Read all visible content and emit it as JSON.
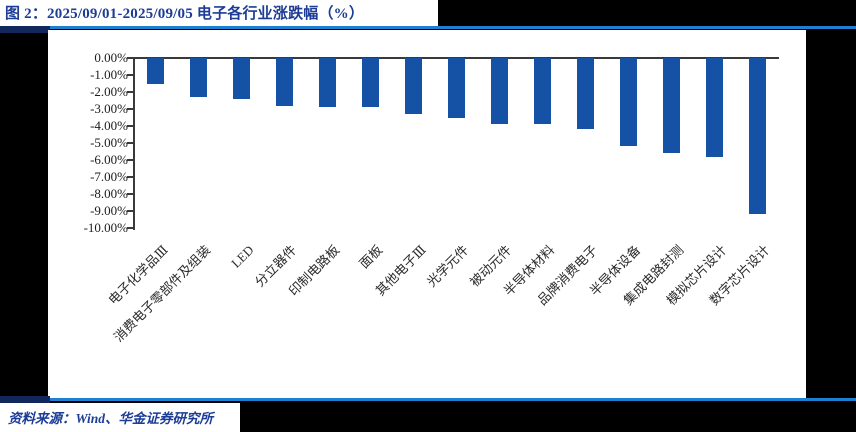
{
  "header": {
    "title": "图 2：2025/09/01-2025/09/05 电子各行业涨跌幅（%）"
  },
  "footer": {
    "source_note": "资料来源：Wind、华金证券研究所"
  },
  "colors": {
    "canvas": "#000000",
    "accent_rule_blue": "#1F7FD0",
    "navy_segment": "#12275B",
    "title_text_blue": "#1C3C96",
    "bar_blue": "#1551A5",
    "axis_gray": "#3a3a3a"
  },
  "chart_data": {
    "type": "bar",
    "title": "2025/09/01-2025/09/05 电子各行业涨跌幅（%）",
    "orientation": "vertical",
    "unit": "%",
    "categories": [
      "电子化学品Ⅲ",
      "消费电子零部件及组装",
      "LED",
      "分立器件",
      "印制电路板",
      "面板",
      "其他电子Ⅲ",
      "光学元件",
      "被动元件",
      "半导体材料",
      "品牌消费电子",
      "半导体设备",
      "集成电路封测",
      "模拟芯片设计",
      "数字芯片设计"
    ],
    "values": [
      -1.5,
      -2.3,
      -2.4,
      -2.8,
      -2.9,
      -2.9,
      -3.3,
      -3.5,
      -3.9,
      -3.9,
      -4.2,
      -5.2,
      -5.6,
      -5.8,
      -9.2
    ],
    "xlabel": "",
    "ylabel": "",
    "ylim": [
      -10,
      0
    ],
    "ytick_step": 1,
    "ytick_labels": [
      "0.00%",
      "-1.00%",
      "-2.00%",
      "-3.00%",
      "-4.00%",
      "-5.00%",
      "-6.00%",
      "-7.00%",
      "-8.00%",
      "-9.00%",
      "-10.00%"
    ],
    "grid": false,
    "legend": null,
    "bar_color": "#1551A5"
  }
}
